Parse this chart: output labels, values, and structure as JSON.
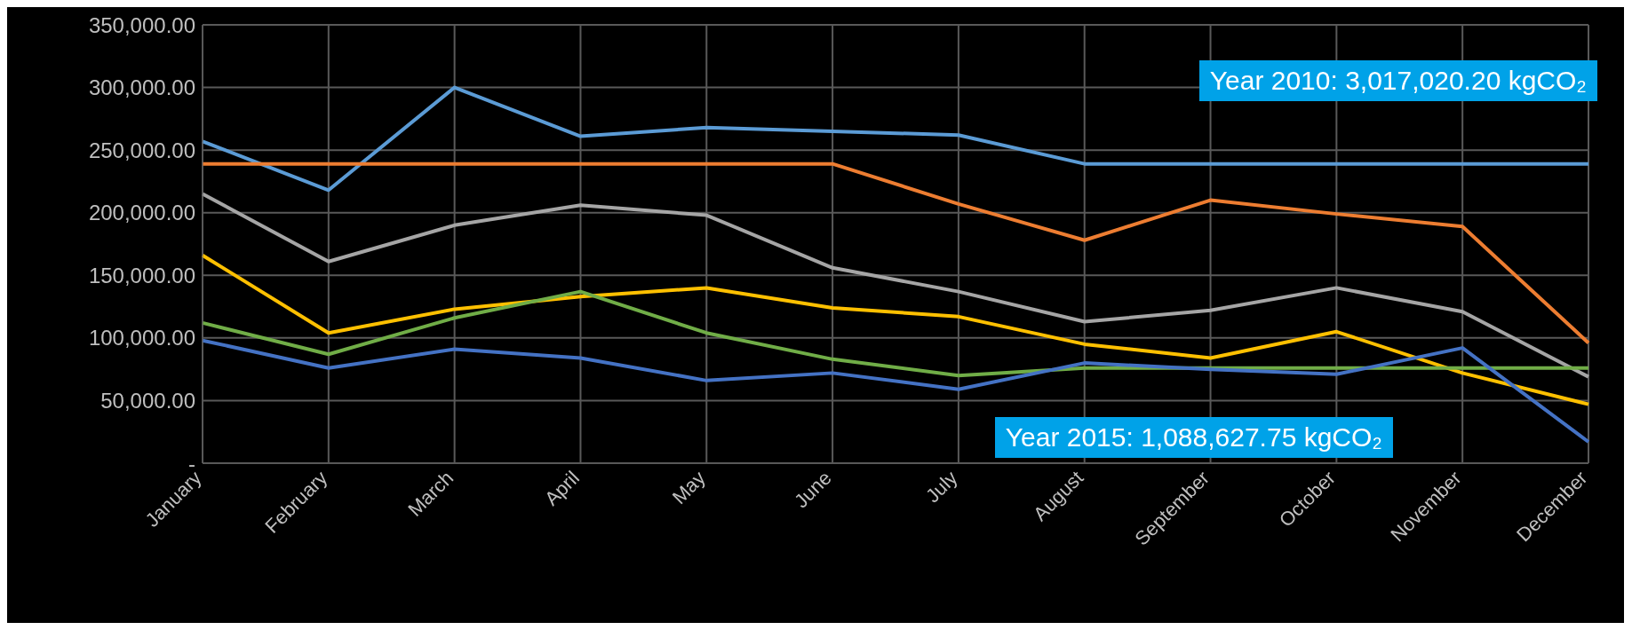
{
  "chart_data": {
    "type": "line",
    "categories": [
      "January",
      "February",
      "March",
      "April",
      "May",
      "June",
      "July",
      "August",
      "September",
      "October",
      "November",
      "December"
    ],
    "series": [
      {
        "color": "#5b9bd5",
        "values": [
          257000,
          218000,
          300000,
          261000,
          268000,
          265000,
          262000,
          239000,
          239000,
          239000,
          239000,
          239000
        ]
      },
      {
        "color": "#ed7d31",
        "values": [
          239000,
          239000,
          239000,
          239000,
          239000,
          239000,
          207000,
          178000,
          210000,
          199000,
          189000,
          96000
        ]
      },
      {
        "color": "#a5a5a5",
        "values": [
          215000,
          161000,
          190000,
          206000,
          198000,
          156000,
          137000,
          113000,
          122000,
          140000,
          121000,
          69000
        ]
      },
      {
        "color": "#ffc000",
        "values": [
          166000,
          104000,
          123000,
          133000,
          140000,
          124000,
          117000,
          95000,
          84000,
          105000,
          72000,
          47000
        ]
      },
      {
        "color": "#70ad47",
        "values": [
          112000,
          87000,
          116000,
          137000,
          104000,
          83000,
          70000,
          76000,
          76000,
          76000,
          76000,
          76000
        ]
      },
      {
        "color": "#4472c4",
        "values": [
          98000,
          76000,
          91000,
          84000,
          66000,
          72000,
          59000,
          80000,
          75000,
          71000,
          92000,
          17000
        ]
      }
    ],
    "ylim": [
      0,
      350000
    ],
    "yticks": [
      {
        "value": 0,
        "label": "-"
      },
      {
        "value": 50000,
        "label": "50,000.00"
      },
      {
        "value": 100000,
        "label": "100,000.00"
      },
      {
        "value": 150000,
        "label": "150,000.00"
      },
      {
        "value": 200000,
        "label": "200,000.00"
      },
      {
        "value": 250000,
        "label": "250,000.00"
      },
      {
        "value": 300000,
        "label": "300,000.00"
      },
      {
        "value": 350000,
        "label": "350,000.00"
      }
    ],
    "grid": true,
    "marker": "none",
    "line_style": "solid",
    "legend": false,
    "annotations": [
      "Year 2010:  3,017,020.20 kgCO₂",
      "Year 2015:  1,088,627.75 kgCO₂"
    ]
  }
}
